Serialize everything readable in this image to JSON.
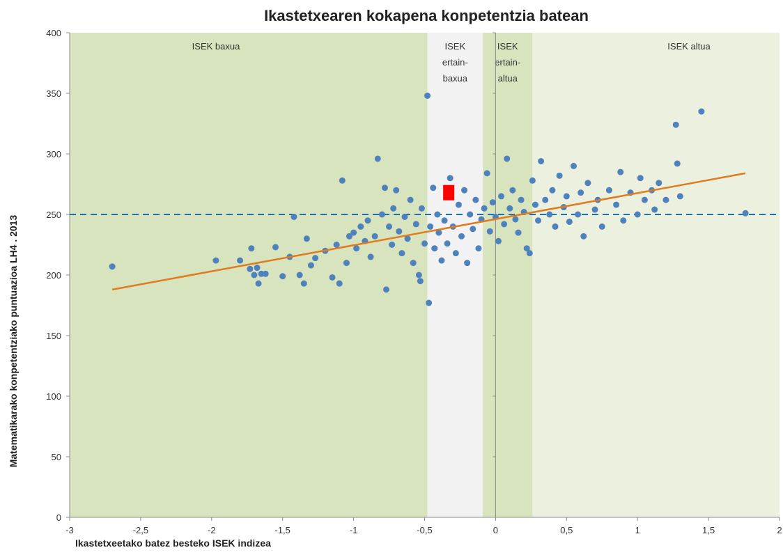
{
  "chart_data": {
    "type": "scatter",
    "title": "Ikastetxearen kokapena konpetentzia batean",
    "xlabel": "Ikastetxeetako batez besteko ISEK indizea",
    "ylabel": "Matematikarako konpetentziako puntuazioa LH4 . 2013",
    "xlim": [
      -3,
      2
    ],
    "ylim": [
      0,
      400
    ],
    "xticks": [
      {
        "value": -3,
        "label": "-3"
      },
      {
        "value": -2.5,
        "label": "-2,5"
      },
      {
        "value": -2,
        "label": "-2"
      },
      {
        "value": -1.5,
        "label": "-1,5"
      },
      {
        "value": -1,
        "label": "-1"
      },
      {
        "value": -0.5,
        "label": "-0,5"
      },
      {
        "value": 0,
        "label": "0"
      },
      {
        "value": 0.5,
        "label": "0,5"
      },
      {
        "value": 1,
        "label": "1"
      },
      {
        "value": 1.5,
        "label": "1,5"
      },
      {
        "value": 2,
        "label": "2"
      }
    ],
    "yticks": [
      0,
      50,
      100,
      150,
      200,
      250,
      300,
      350,
      400
    ],
    "bands": [
      {
        "lines": [
          "ISEK baxua"
        ],
        "from": -3,
        "to": -0.48,
        "color": "#d7e4bd"
      },
      {
        "lines": [
          "ISEK",
          "ertain-",
          "baxua"
        ],
        "from": -0.48,
        "to": -0.09,
        "color": "#f2f2f2"
      },
      {
        "lines": [
          "ISEK",
          "ertain-",
          "altua"
        ],
        "from": -0.09,
        "to": 0.26,
        "color": "#d7e4bd"
      },
      {
        "lines": [
          "ISEK  altua"
        ],
        "from": 0.26,
        "to": 2,
        "color": "#ebf1de"
      }
    ],
    "reference_y": 250,
    "trend": {
      "x": [
        -2.7,
        1.76
      ],
      "y": [
        188,
        284
      ],
      "color": "#e07b20"
    },
    "highlight": {
      "x": -0.33,
      "y": 268,
      "color": "#ff0000"
    },
    "series": [
      {
        "color": "#4f81bd",
        "x": [
          -2.7,
          -1.97,
          -1.8,
          -1.73,
          -1.72,
          -1.7,
          -1.68,
          -1.67,
          -1.65,
          -1.62,
          -1.55,
          -1.5,
          -1.45,
          -1.42,
          -1.38,
          -1.35,
          -1.33,
          -1.3,
          -1.27,
          -1.2,
          -1.15,
          -1.12,
          -1.1,
          -1.08,
          -1.05,
          -1.03,
          -1.0,
          -0.98,
          -0.95,
          -0.92,
          -0.9,
          -0.88,
          -0.85,
          -0.83,
          -0.8,
          -0.78,
          -0.77,
          -0.75,
          -0.73,
          -0.72,
          -0.7,
          -0.68,
          -0.66,
          -0.64,
          -0.62,
          -0.6,
          -0.58,
          -0.56,
          -0.54,
          -0.53,
          -0.52,
          -0.5,
          -0.48,
          -0.47,
          -0.46,
          -0.44,
          -0.43,
          -0.41,
          -0.4,
          -0.38,
          -0.36,
          -0.34,
          -0.32,
          -0.3,
          -0.28,
          -0.26,
          -0.24,
          -0.22,
          -0.2,
          -0.18,
          -0.16,
          -0.14,
          -0.12,
          -0.1,
          -0.08,
          -0.06,
          -0.04,
          -0.02,
          0.0,
          0.02,
          0.04,
          0.06,
          0.08,
          0.1,
          0.12,
          0.14,
          0.16,
          0.18,
          0.2,
          0.22,
          0.24,
          0.26,
          0.28,
          0.3,
          0.32,
          0.35,
          0.38,
          0.4,
          0.42,
          0.45,
          0.48,
          0.5,
          0.52,
          0.55,
          0.58,
          0.6,
          0.62,
          0.65,
          0.7,
          0.72,
          0.75,
          0.8,
          0.85,
          0.88,
          0.9,
          0.95,
          1.0,
          1.02,
          1.05,
          1.1,
          1.12,
          1.15,
          1.2,
          1.27,
          1.28,
          1.3,
          1.45,
          1.76
        ],
        "values": [
          207,
          212,
          212,
          205,
          222,
          200,
          206,
          193,
          201,
          201,
          223,
          199,
          215,
          248,
          200,
          193,
          230,
          208,
          214,
          220,
          198,
          225,
          193,
          278,
          210,
          232,
          235,
          222,
          240,
          228,
          245,
          215,
          232,
          296,
          250,
          272,
          188,
          240,
          225,
          255,
          270,
          236,
          218,
          248,
          230,
          262,
          210,
          242,
          200,
          195,
          255,
          226,
          348,
          177,
          240,
          272,
          222,
          250,
          235,
          212,
          245,
          226,
          280,
          240,
          218,
          258,
          232,
          270,
          210,
          250,
          238,
          262,
          222,
          246,
          255,
          284,
          236,
          260,
          248,
          228,
          265,
          242,
          296,
          255,
          270,
          246,
          235,
          262,
          252,
          222,
          218,
          278,
          258,
          245,
          294,
          262,
          250,
          270,
          240,
          282,
          256,
          265,
          244,
          290,
          250,
          268,
          232,
          276,
          254,
          262,
          240,
          270,
          258,
          285,
          245,
          268,
          250,
          280,
          262,
          270,
          254,
          276,
          262,
          324,
          292,
          265,
          335,
          251
        ]
      }
    ]
  }
}
